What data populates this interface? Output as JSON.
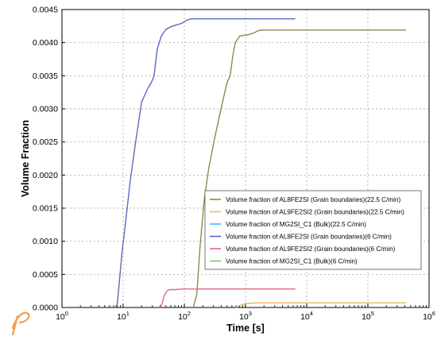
{
  "chart_data": {
    "type": "line",
    "xlabel": "Time [s]",
    "ylabel": "Volume Fraction",
    "xscale": "log",
    "xlim": [
      1,
      1000000
    ],
    "ylim": [
      0,
      0.0045
    ],
    "x_ticks": [
      {
        "base": "10",
        "exp": "0"
      },
      {
        "base": "10",
        "exp": "1"
      },
      {
        "base": "10",
        "exp": "2"
      },
      {
        "base": "10",
        "exp": "3"
      },
      {
        "base": "10",
        "exp": "4"
      },
      {
        "base": "10",
        "exp": "5"
      },
      {
        "base": "10",
        "exp": "6"
      }
    ],
    "y_ticks": [
      "0.0000",
      "0.0005",
      "0.0010",
      "0.0015",
      "0.0020",
      "0.0025",
      "0.0030",
      "0.0035",
      "0.0040",
      "0.0045"
    ],
    "grid": true,
    "legend_position": "bottom-right",
    "series": [
      {
        "name": "Volume fraction of AL8FE2SI (Grain boundaries)(22.5 C/min)",
        "color": "#8f8a48",
        "points": [
          [
            140,
            0
          ],
          [
            160,
            0.0002
          ],
          [
            180,
            0.0009
          ],
          [
            210,
            0.0016
          ],
          [
            250,
            0.0021
          ],
          [
            320,
            0.0026
          ],
          [
            420,
            0.0031
          ],
          [
            500,
            0.0034
          ],
          [
            560,
            0.0035
          ],
          [
            620,
            0.0038
          ],
          [
            680,
            0.004
          ],
          [
            800,
            0.0041
          ],
          [
            1100,
            0.00412
          ],
          [
            1400,
            0.00415
          ],
          [
            1600,
            0.00418
          ],
          [
            1800,
            0.00419
          ],
          [
            6000,
            0.00419
          ],
          [
            420000,
            0.00419
          ]
        ]
      },
      {
        "name": "Volume fraction of AL9FE2SI2 (Grain boundaries)(22.5 C/min)",
        "color": "#e8b86a",
        "points": [
          [
            700,
            0
          ],
          [
            800,
            3e-05
          ],
          [
            1000,
            6e-05
          ],
          [
            1500,
            7e-05
          ],
          [
            420000,
            7e-05
          ]
        ]
      },
      {
        "name": "Volume fraction of MG2SI_C1 (Bulk)(22.5 C/min)",
        "color": "#3fc0e0",
        "points": []
      },
      {
        "name": "Volume fraction of AL8FE2SI (Grain boundaries)(6 C/min)",
        "color": "#5b6bbf",
        "points": [
          [
            7.5,
            0
          ],
          [
            8,
            5e-05
          ],
          [
            8.5,
            0.0003
          ],
          [
            9.5,
            0.0008
          ],
          [
            11,
            0.0013
          ],
          [
            13,
            0.0019
          ],
          [
            16,
            0.0025
          ],
          [
            20,
            0.0031
          ],
          [
            25,
            0.0033
          ],
          [
            29,
            0.0034
          ],
          [
            32,
            0.0035
          ],
          [
            36,
            0.0039
          ],
          [
            42,
            0.0041
          ],
          [
            50,
            0.0042
          ],
          [
            60,
            0.00424
          ],
          [
            75,
            0.00427
          ],
          [
            90,
            0.00429
          ],
          [
            110,
            0.00434
          ],
          [
            130,
            0.00436
          ],
          [
            6500,
            0.00436
          ]
        ]
      },
      {
        "name": "Volume fraction of AL9FE2SI2 (Grain boundaries)(6 C/min)",
        "color": "#e06a80",
        "points": [
          [
            40,
            0
          ],
          [
            43,
            5e-05
          ],
          [
            47,
            0.00018
          ],
          [
            52,
            0.00025
          ],
          [
            58,
            0.00027
          ],
          [
            70,
            0.00027
          ],
          [
            100,
            0.00028
          ],
          [
            6500,
            0.00028
          ]
        ]
      },
      {
        "name": "Volume fraction of MG2SI_C1 (Bulk)(6 C/min)",
        "color": "#7cc46c",
        "points": []
      }
    ]
  }
}
